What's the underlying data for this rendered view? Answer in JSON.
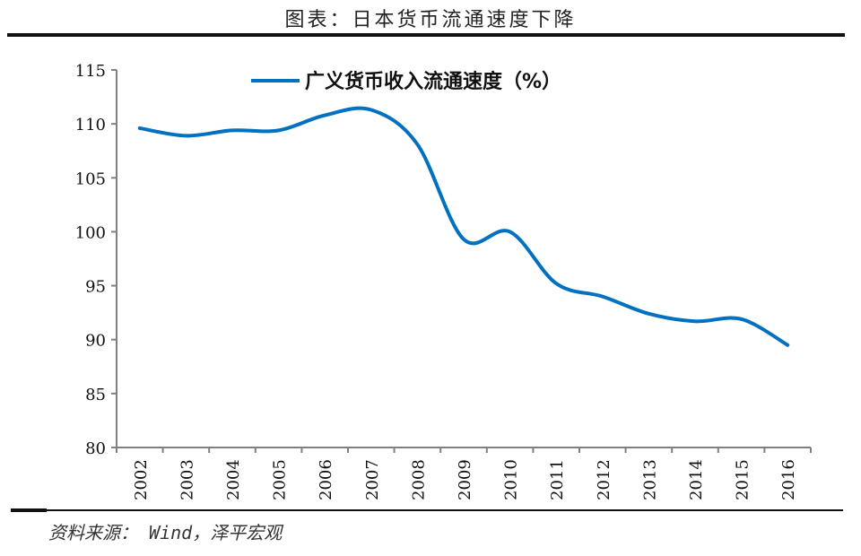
{
  "header": {
    "title": "图表：日本货币流通速度下降"
  },
  "footer": {
    "source": "资料来源：  Wind，泽平宏观"
  },
  "colors": {
    "line": "#0070c0",
    "axis": "#808080",
    "rule": "#111111"
  },
  "chart_data": {
    "type": "line",
    "title": "图表：日本货币流通速度下降",
    "xlabel": "",
    "ylabel": "",
    "categories": [
      "2002",
      "2003",
      "2004",
      "2005",
      "2006",
      "2007",
      "2008",
      "2009",
      "2010",
      "2011",
      "2012",
      "2013",
      "2014",
      "2015",
      "2016"
    ],
    "series": [
      {
        "name": "广义货币收入流通速度（%）",
        "color": "#0070c0",
        "values": [
          109.6,
          108.9,
          109.4,
          109.4,
          110.8,
          111.3,
          108.1,
          99.3,
          100.0,
          95.2,
          94.0,
          92.4,
          91.7,
          91.9,
          89.5
        ]
      }
    ],
    "ylim": [
      80,
      115
    ],
    "yticks": [
      80,
      85,
      90,
      95,
      100,
      105,
      110,
      115
    ],
    "grid": false,
    "legend_position": "top-center",
    "smooth": true
  }
}
